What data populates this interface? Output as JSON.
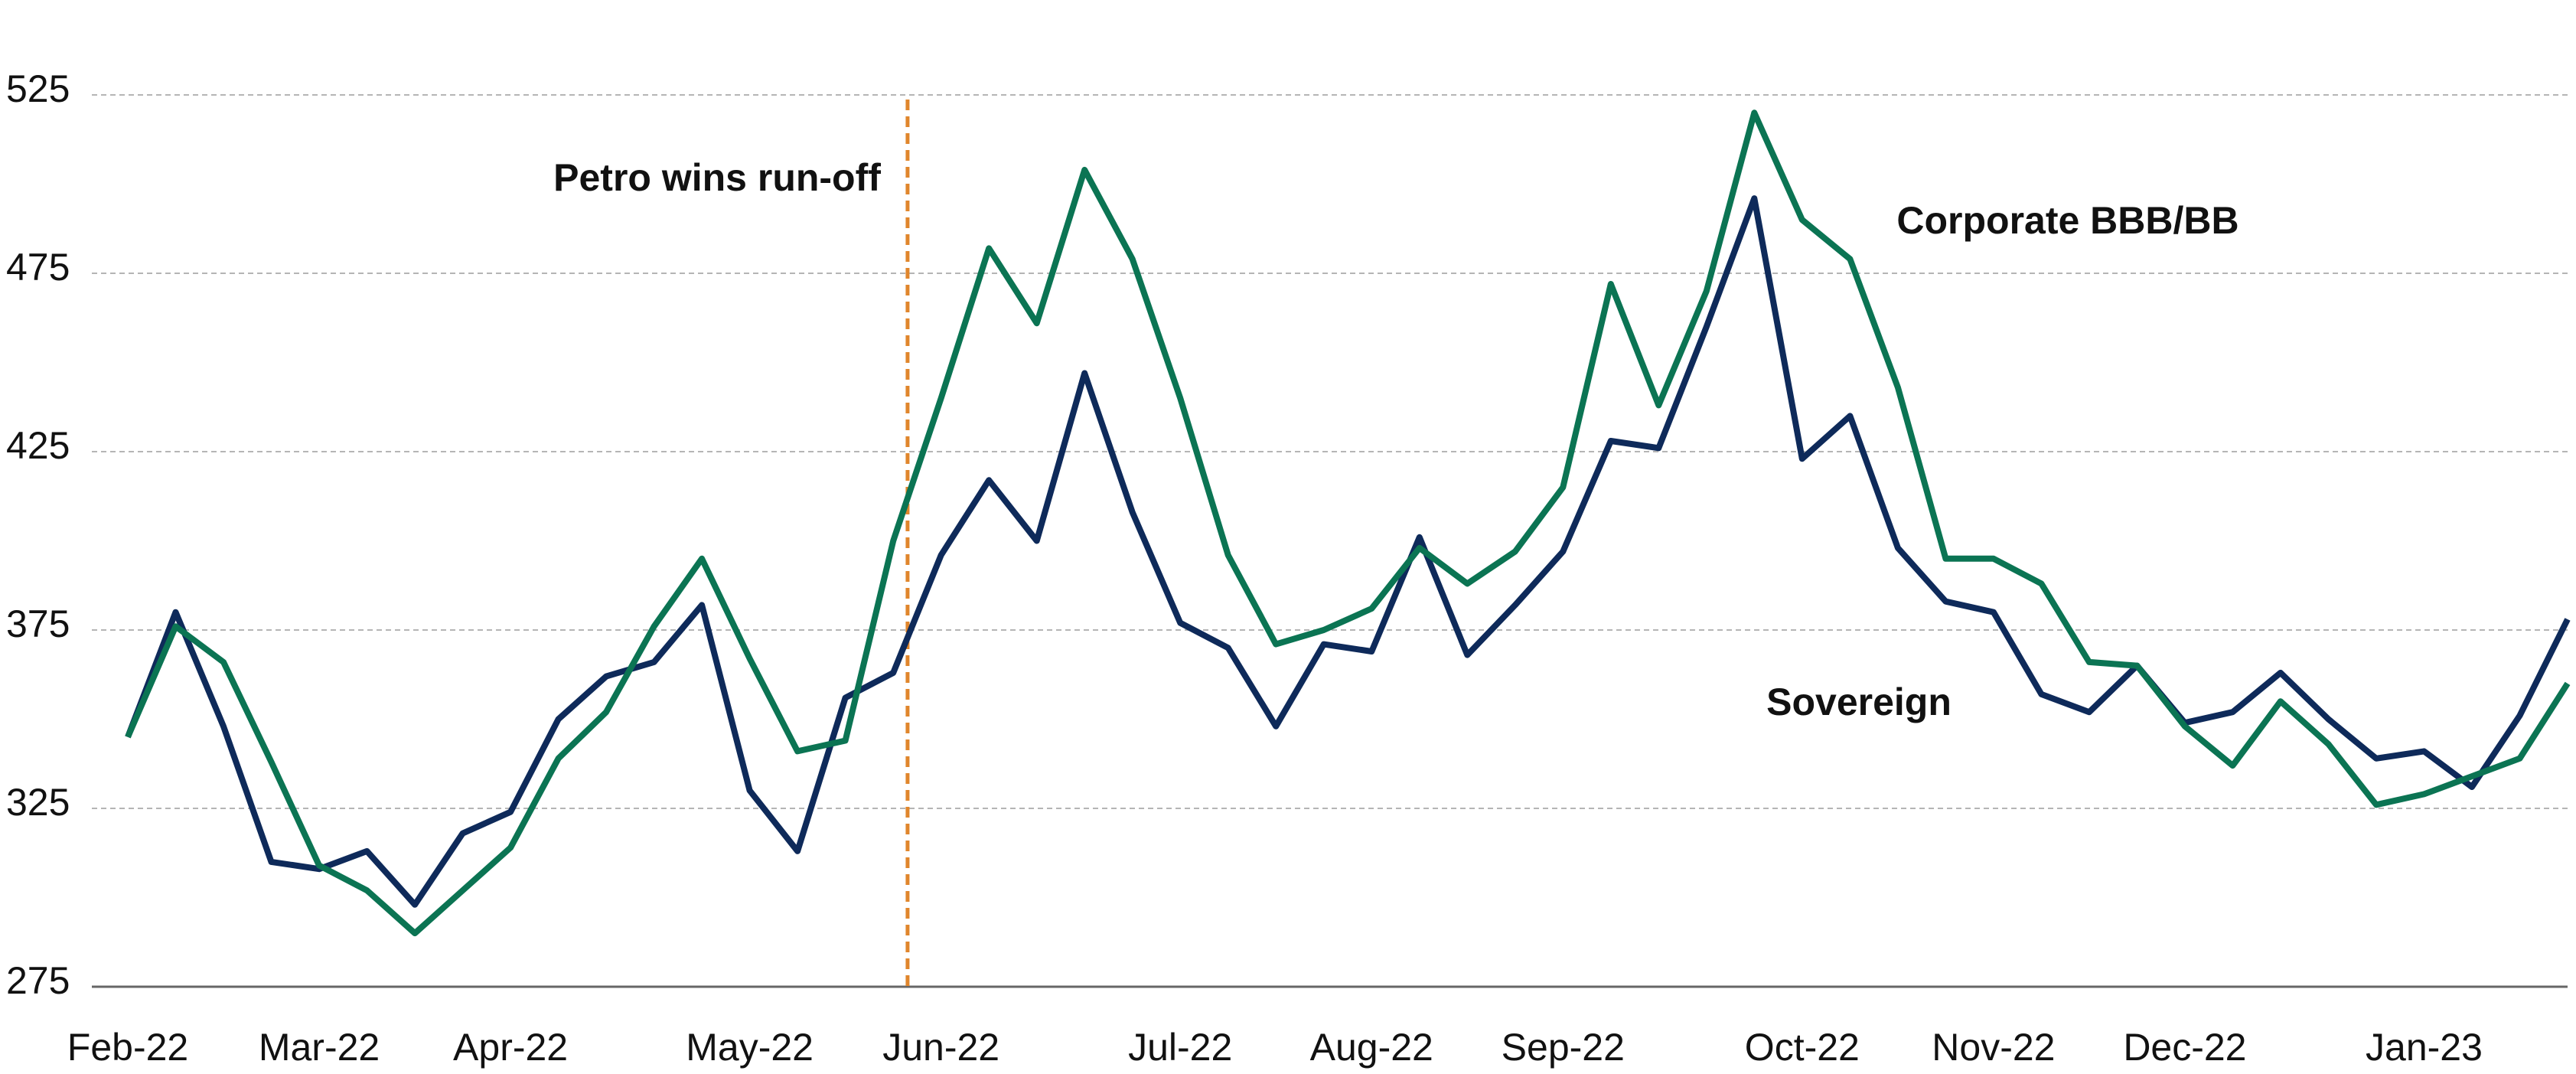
{
  "chart_data": {
    "type": "line",
    "categories": [
      "Feb-22",
      null,
      null,
      null,
      "Mar-22",
      null,
      null,
      null,
      "Apr-22",
      null,
      null,
      null,
      null,
      "May-22",
      null,
      null,
      null,
      "Jun-22",
      null,
      null,
      null,
      null,
      "Jul-22",
      null,
      null,
      null,
      "Aug-22",
      null,
      null,
      null,
      "Sep-22",
      null,
      null,
      null,
      null,
      "Oct-22",
      null,
      null,
      null,
      "Nov-22",
      null,
      null,
      null,
      "Dec-22",
      null,
      null,
      null,
      null,
      "Jan-23",
      null,
      null,
      null
    ],
    "series": [
      {
        "name": "Sovereign",
        "color": "#0e2a5a",
        "values": [
          345,
          380,
          348,
          310,
          308,
          313,
          298,
          318,
          324,
          350,
          362,
          366,
          382,
          330,
          313,
          356,
          363,
          396,
          417,
          400,
          447,
          408,
          377,
          370,
          348,
          371,
          369,
          401,
          368,
          382,
          397,
          428,
          426,
          460,
          496,
          423,
          435,
          398,
          383,
          380,
          357,
          352,
          365,
          349,
          352,
          363,
          350,
          339,
          341,
          331,
          351,
          378
        ]
      },
      {
        "name": "Corporate BBB/BB",
        "color": "#0b7453",
        "values": [
          345,
          376,
          366,
          338,
          309,
          302,
          290,
          302,
          314,
          339,
          352,
          376,
          395,
          367,
          341,
          344,
          400,
          440,
          482,
          461,
          504,
          479,
          440,
          396,
          371,
          375,
          381,
          398,
          388,
          397,
          415,
          472,
          438,
          470,
          520,
          490,
          479,
          443,
          395,
          395,
          388,
          366,
          365,
          348,
          337,
          355,
          343,
          326,
          329,
          334,
          339,
          360
        ]
      }
    ],
    "annotations": [
      {
        "text": "Petro wins run-off",
        "x": 16.3,
        "color": "#e0862c"
      }
    ],
    "ylim": [
      275,
      525
    ],
    "yticks": [
      275,
      325,
      375,
      425,
      475,
      525
    ],
    "grid": true
  }
}
